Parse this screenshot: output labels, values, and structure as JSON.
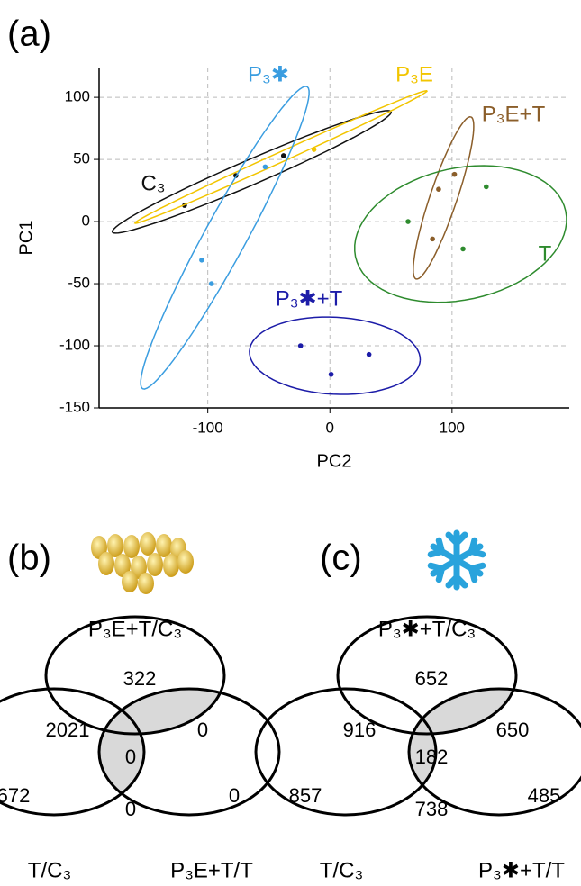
{
  "chart_data": [
    {
      "type": "scatter",
      "label": "(a)",
      "x_label": "PC2",
      "y_label": "PC1",
      "xlim": [
        -189,
        196
      ],
      "ylim": [
        -150,
        124
      ],
      "xticks": [
        -100,
        0,
        100
      ],
      "yticks": [
        -150,
        -100,
        -50,
        0,
        50,
        100
      ],
      "grid": true,
      "series": [
        {
          "name": "C₃",
          "color": "#111111",
          "x": [
            -119,
            -77,
            -38
          ],
          "values": [
            13,
            37,
            53
          ],
          "ellipse": {
            "center": [
              -64,
              40
            ],
            "radii": [
              124,
              10
            ],
            "angle": 23
          }
        },
        {
          "name": "P₃E",
          "color": "#f2c500",
          "x": [
            -13
          ],
          "values": [
            58
          ],
          "ellipse": {
            "center": [
              -40,
              52
            ],
            "radii": [
              131,
              4
            ],
            "angle": 24
          }
        },
        {
          "name": "P₃✱",
          "color": "#3a9de0",
          "x": [
            -105,
            -97,
            -53
          ],
          "values": [
            -31,
            -50,
            44
          ],
          "ellipse": {
            "center": [
              -86,
              -13
            ],
            "radii": [
              139,
              17
            ],
            "angle": 61
          }
        },
        {
          "name": "P₃✱+T",
          "color": "#1c1ca8",
          "x": [
            -24,
            1,
            32
          ],
          "values": [
            -100,
            -123,
            -107
          ],
          "ellipse": {
            "center": [
              4,
              -108
            ],
            "radii": [
              70,
              31
            ],
            "angle": -3
          }
        },
        {
          "name": "P₃E+T",
          "color": "#8b5e2a",
          "x": [
            89,
            102,
            84
          ],
          "values": [
            26,
            38,
            -14
          ],
          "ellipse": {
            "center": [
              93,
              19
            ],
            "radii": [
              69,
              11
            ],
            "angle": 71
          }
        },
        {
          "name": "T",
          "color": "#2e8b2e",
          "x": [
            64,
            128,
            109
          ],
          "values": [
            0,
            28,
            -22
          ],
          "ellipse": {
            "center": [
              107,
              -10
            ],
            "radii": [
              88,
              53
            ],
            "angle": 12
          }
        }
      ]
    },
    {
      "type": "venn",
      "label": "(b)",
      "sets": [
        "P₃E+T/C₃",
        "T/C₃",
        "P₃E+T/T"
      ],
      "values": [
        322,
        2021,
        0,
        0,
        672,
        0,
        0
      ]
    },
    {
      "type": "venn",
      "label": "(c)",
      "sets": [
        "P₃✱+T/C₃",
        "T/C₃",
        "P₃✱+T/T"
      ],
      "values": [
        652,
        916,
        650,
        182,
        857,
        738,
        485
      ]
    }
  ]
}
